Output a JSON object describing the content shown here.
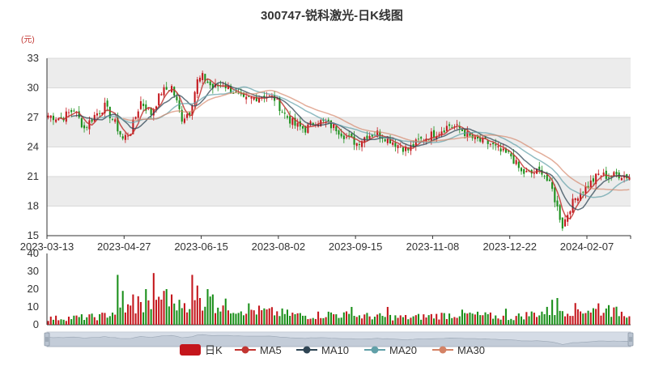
{
  "chart_data": {
    "type": "candlestick",
    "title": "300747-锐科激光-日K线图",
    "ylabel": "(元)",
    "price_axis": {
      "ylim": [
        15,
        33
      ],
      "ticks": [
        "15",
        "18",
        "21",
        "24",
        "27",
        "30",
        "33"
      ]
    },
    "volume_axis": {
      "ylim": [
        0,
        40
      ],
      "ticks": [
        "0",
        "10",
        "20",
        "30",
        "40"
      ]
    },
    "x_ticks": [
      {
        "label": "2023-03-13",
        "index": 0
      },
      {
        "label": "2023-04-27",
        "index": 30
      },
      {
        "label": "2023-06-15",
        "index": 60
      },
      {
        "label": "2023-08-02",
        "index": 90
      },
      {
        "label": "2023-09-15",
        "index": 120
      },
      {
        "label": "2023-11-08",
        "index": 150
      },
      {
        "label": "2023-12-22",
        "index": 180
      },
      {
        "label": "2024-02-07",
        "index": 210
      }
    ],
    "legend": [
      "日K",
      "MA5",
      "MA10",
      "MA20",
      "MA30"
    ],
    "colors": {
      "up": "#c4161c",
      "down": "#1a8f1a",
      "ma5": "#c23531",
      "ma10": "#2f4554",
      "ma20": "#61a0a8",
      "ma30": "#d48265"
    },
    "close_anchors": [
      [
        0,
        27.2
      ],
      [
        5,
        26.9
      ],
      [
        10,
        27.8
      ],
      [
        14,
        25.9
      ],
      [
        18,
        27.2
      ],
      [
        22,
        28.1
      ],
      [
        26,
        26.4
      ],
      [
        29,
        24.8
      ],
      [
        32,
        25.6
      ],
      [
        36,
        28.6
      ],
      [
        40,
        27.4
      ],
      [
        44,
        29.6
      ],
      [
        48,
        30.1
      ],
      [
        52,
        26.9
      ],
      [
        55,
        27.6
      ],
      [
        58,
        30.7
      ],
      [
        60,
        31.1
      ],
      [
        64,
        30.0
      ],
      [
        68,
        30.4
      ],
      [
        72,
        29.6
      ],
      [
        76,
        28.7
      ],
      [
        80,
        29.0
      ],
      [
        84,
        29.3
      ],
      [
        88,
        28.9
      ],
      [
        92,
        27.3
      ],
      [
        96,
        26.2
      ],
      [
        100,
        25.8
      ],
      [
        104,
        26.7
      ],
      [
        108,
        26.4
      ],
      [
        112,
        25.9
      ],
      [
        116,
        25.0
      ],
      [
        120,
        24.4
      ],
      [
        124,
        25.2
      ],
      [
        128,
        25.4
      ],
      [
        132,
        24.9
      ],
      [
        136,
        24.2
      ],
      [
        140,
        23.7
      ],
      [
        144,
        24.6
      ],
      [
        148,
        25.1
      ],
      [
        152,
        25.6
      ],
      [
        156,
        26.2
      ],
      [
        160,
        25.9
      ],
      [
        164,
        25.0
      ],
      [
        168,
        24.6
      ],
      [
        172,
        24.3
      ],
      [
        176,
        23.5
      ],
      [
        180,
        23.1
      ],
      [
        184,
        21.4
      ],
      [
        188,
        21.3
      ],
      [
        192,
        21.6
      ],
      [
        196,
        19.6
      ],
      [
        200,
        16.0
      ],
      [
        203,
        17.9
      ],
      [
        206,
        19.2
      ],
      [
        210,
        20.1
      ],
      [
        214,
        21.2
      ],
      [
        218,
        21.0
      ],
      [
        222,
        21.2
      ],
      [
        226,
        21.0
      ]
    ],
    "volume_profile": [
      [
        0,
        3.5
      ],
      [
        20,
        4.5
      ],
      [
        30,
        9
      ],
      [
        40,
        11
      ],
      [
        50,
        12
      ],
      [
        60,
        13
      ],
      [
        70,
        10
      ],
      [
        80,
        8
      ],
      [
        90,
        6.5
      ],
      [
        100,
        5
      ],
      [
        110,
        6
      ],
      [
        120,
        5
      ],
      [
        130,
        4.5
      ],
      [
        140,
        4
      ],
      [
        150,
        5
      ],
      [
        160,
        6
      ],
      [
        170,
        5
      ],
      [
        180,
        4
      ],
      [
        190,
        6.5
      ],
      [
        200,
        8.5
      ],
      [
        210,
        8.5
      ],
      [
        226,
        6.5
      ]
    ],
    "volume_spikes": [
      [
        27,
        28
      ],
      [
        29,
        19
      ],
      [
        33,
        17
      ],
      [
        35,
        16
      ],
      [
        38,
        20
      ],
      [
        41,
        29
      ],
      [
        42,
        14
      ],
      [
        45,
        19
      ],
      [
        46,
        20
      ],
      [
        48,
        17
      ],
      [
        51,
        14
      ],
      [
        56,
        28
      ],
      [
        58,
        22
      ],
      [
        59,
        15
      ],
      [
        62,
        20
      ],
      [
        64,
        17
      ],
      [
        78,
        12
      ],
      [
        118,
        10
      ],
      [
        132,
        10
      ],
      [
        178,
        9
      ],
      [
        196,
        14
      ],
      [
        198,
        15
      ],
      [
        214,
        12
      ],
      [
        218,
        11
      ]
    ]
  }
}
